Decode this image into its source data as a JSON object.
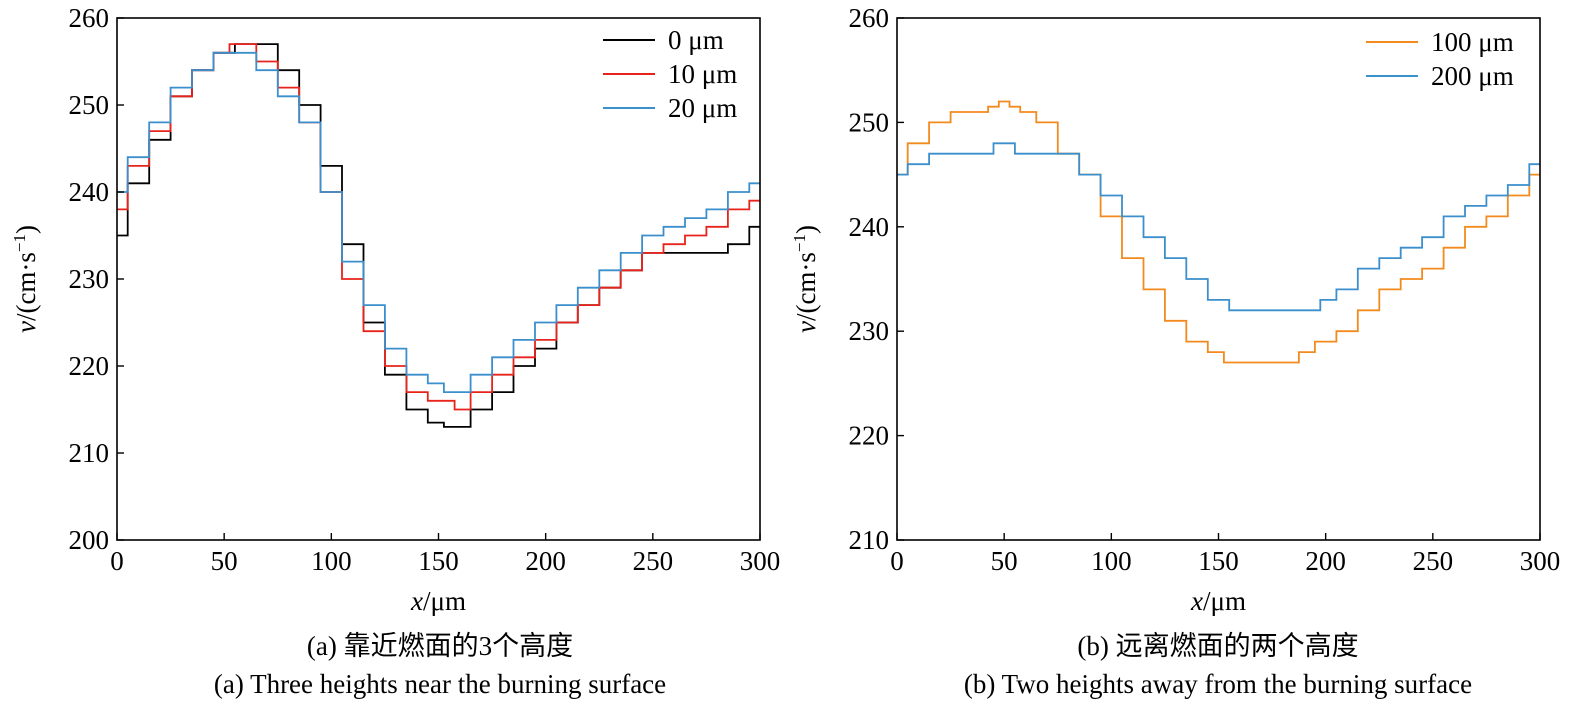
{
  "captions": {
    "a_cn": "(a) 靠近燃面的3个高度",
    "a_en": "(a) Three heights near the burning surface",
    "b_cn": "(b) 远离燃面的两个高度",
    "b_en": "(b) Two heights away from the burning surface"
  },
  "chart_data": [
    {
      "type": "line",
      "id": "a",
      "xlabel": "x/μm",
      "xlabel_italic": "x",
      "xlabel_unit": "/μm",
      "ylabel": "v/(cm·s⁻¹)",
      "ylabel_italic": "v",
      "ylabel_unit": "/(cm·s",
      "ylabel_sup": "−1",
      "ylabel_close": ")",
      "xlim": [
        0,
        300
      ],
      "ylim": [
        200,
        260
      ],
      "xticks": [
        0,
        50,
        100,
        150,
        200,
        250,
        300
      ],
      "yticks": [
        200,
        210,
        220,
        230,
        240,
        250,
        260
      ],
      "legend_position": "top-right",
      "series": [
        {
          "name": "0 μm",
          "color": "#000000",
          "x": [
            0,
            10,
            20,
            30,
            40,
            50,
            60,
            70,
            80,
            90,
            100,
            110,
            120,
            130,
            140,
            150,
            155,
            160,
            170,
            180,
            190,
            200,
            210,
            220,
            230,
            240,
            250,
            260,
            270,
            280,
            290,
            300
          ],
          "y": [
            235,
            241,
            246,
            251,
            254,
            256,
            257,
            257,
            254,
            250,
            243,
            234,
            225,
            219,
            215,
            213.5,
            213,
            213,
            215,
            217,
            220,
            222,
            225,
            227,
            229,
            231,
            233,
            233,
            233,
            233,
            234,
            236
          ]
        },
        {
          "name": "10 μm",
          "color": "#e8231b",
          "x": [
            0,
            10,
            20,
            30,
            40,
            50,
            55,
            60,
            70,
            80,
            90,
            100,
            110,
            120,
            130,
            140,
            150,
            155,
            160,
            170,
            180,
            190,
            200,
            210,
            220,
            230,
            240,
            250,
            260,
            270,
            280,
            290,
            300
          ],
          "y": [
            238,
            243,
            247,
            251,
            254,
            256,
            257,
            257,
            255,
            252,
            248,
            240,
            230,
            224,
            220,
            217,
            216,
            216,
            215,
            217,
            219,
            221,
            223,
            225,
            227,
            229,
            231,
            233,
            234,
            235,
            236,
            238,
            239
          ]
        },
        {
          "name": "20 μm",
          "color": "#3b8fcc",
          "x": [
            0,
            10,
            20,
            30,
            40,
            50,
            60,
            70,
            80,
            90,
            100,
            110,
            120,
            130,
            140,
            150,
            155,
            160,
            170,
            180,
            190,
            200,
            210,
            220,
            230,
            240,
            250,
            260,
            270,
            280,
            290,
            300
          ],
          "y": [
            240,
            244,
            248,
            252,
            254,
            256,
            256,
            254,
            251,
            248,
            240,
            232,
            227,
            222,
            219,
            218,
            217,
            217,
            219,
            221,
            223,
            225,
            227,
            229,
            231,
            233,
            235,
            236,
            237,
            238,
            240,
            241
          ]
        }
      ]
    },
    {
      "type": "line",
      "id": "b",
      "xlabel": "x/μm",
      "xlabel_italic": "x",
      "xlabel_unit": "/μm",
      "ylabel": "v/(cm·s⁻¹)",
      "ylabel_italic": "v",
      "ylabel_unit": "/(cm·s",
      "ylabel_sup": "−1",
      "ylabel_close": ")",
      "xlim": [
        0,
        300
      ],
      "ylim": [
        210,
        260
      ],
      "xticks": [
        0,
        50,
        100,
        150,
        200,
        250,
        300
      ],
      "yticks": [
        210,
        220,
        230,
        240,
        250,
        260
      ],
      "legend_position": "top-right",
      "series": [
        {
          "name": "100 μm",
          "color": "#f28a1e",
          "x": [
            0,
            10,
            20,
            30,
            40,
            45,
            50,
            55,
            60,
            70,
            80,
            90,
            100,
            110,
            120,
            130,
            140,
            150,
            155,
            160,
            170,
            180,
            185,
            190,
            200,
            210,
            220,
            230,
            240,
            250,
            260,
            270,
            280,
            290,
            300
          ],
          "y": [
            245,
            248,
            250,
            251,
            251,
            251.5,
            252,
            251.5,
            251,
            250,
            247,
            245,
            241,
            237,
            234,
            231,
            229,
            228,
            227,
            227,
            227,
            227,
            227,
            228,
            229,
            230,
            232,
            234,
            235,
            236,
            238,
            240,
            241,
            243,
            245
          ]
        },
        {
          "name": "200 μm",
          "color": "#3b8fcc",
          "x": [
            0,
            10,
            20,
            30,
            40,
            50,
            60,
            70,
            80,
            90,
            100,
            110,
            120,
            130,
            140,
            150,
            160,
            170,
            180,
            190,
            195,
            200,
            210,
            220,
            230,
            240,
            250,
            260,
            270,
            280,
            290,
            300
          ],
          "y": [
            245,
            246,
            247,
            247,
            247,
            248,
            247,
            247,
            247,
            245,
            243,
            241,
            239,
            237,
            235,
            233,
            232,
            232,
            232,
            232,
            232,
            233,
            234,
            236,
            237,
            238,
            239,
            241,
            242,
            243,
            244,
            246
          ]
        }
      ]
    }
  ]
}
